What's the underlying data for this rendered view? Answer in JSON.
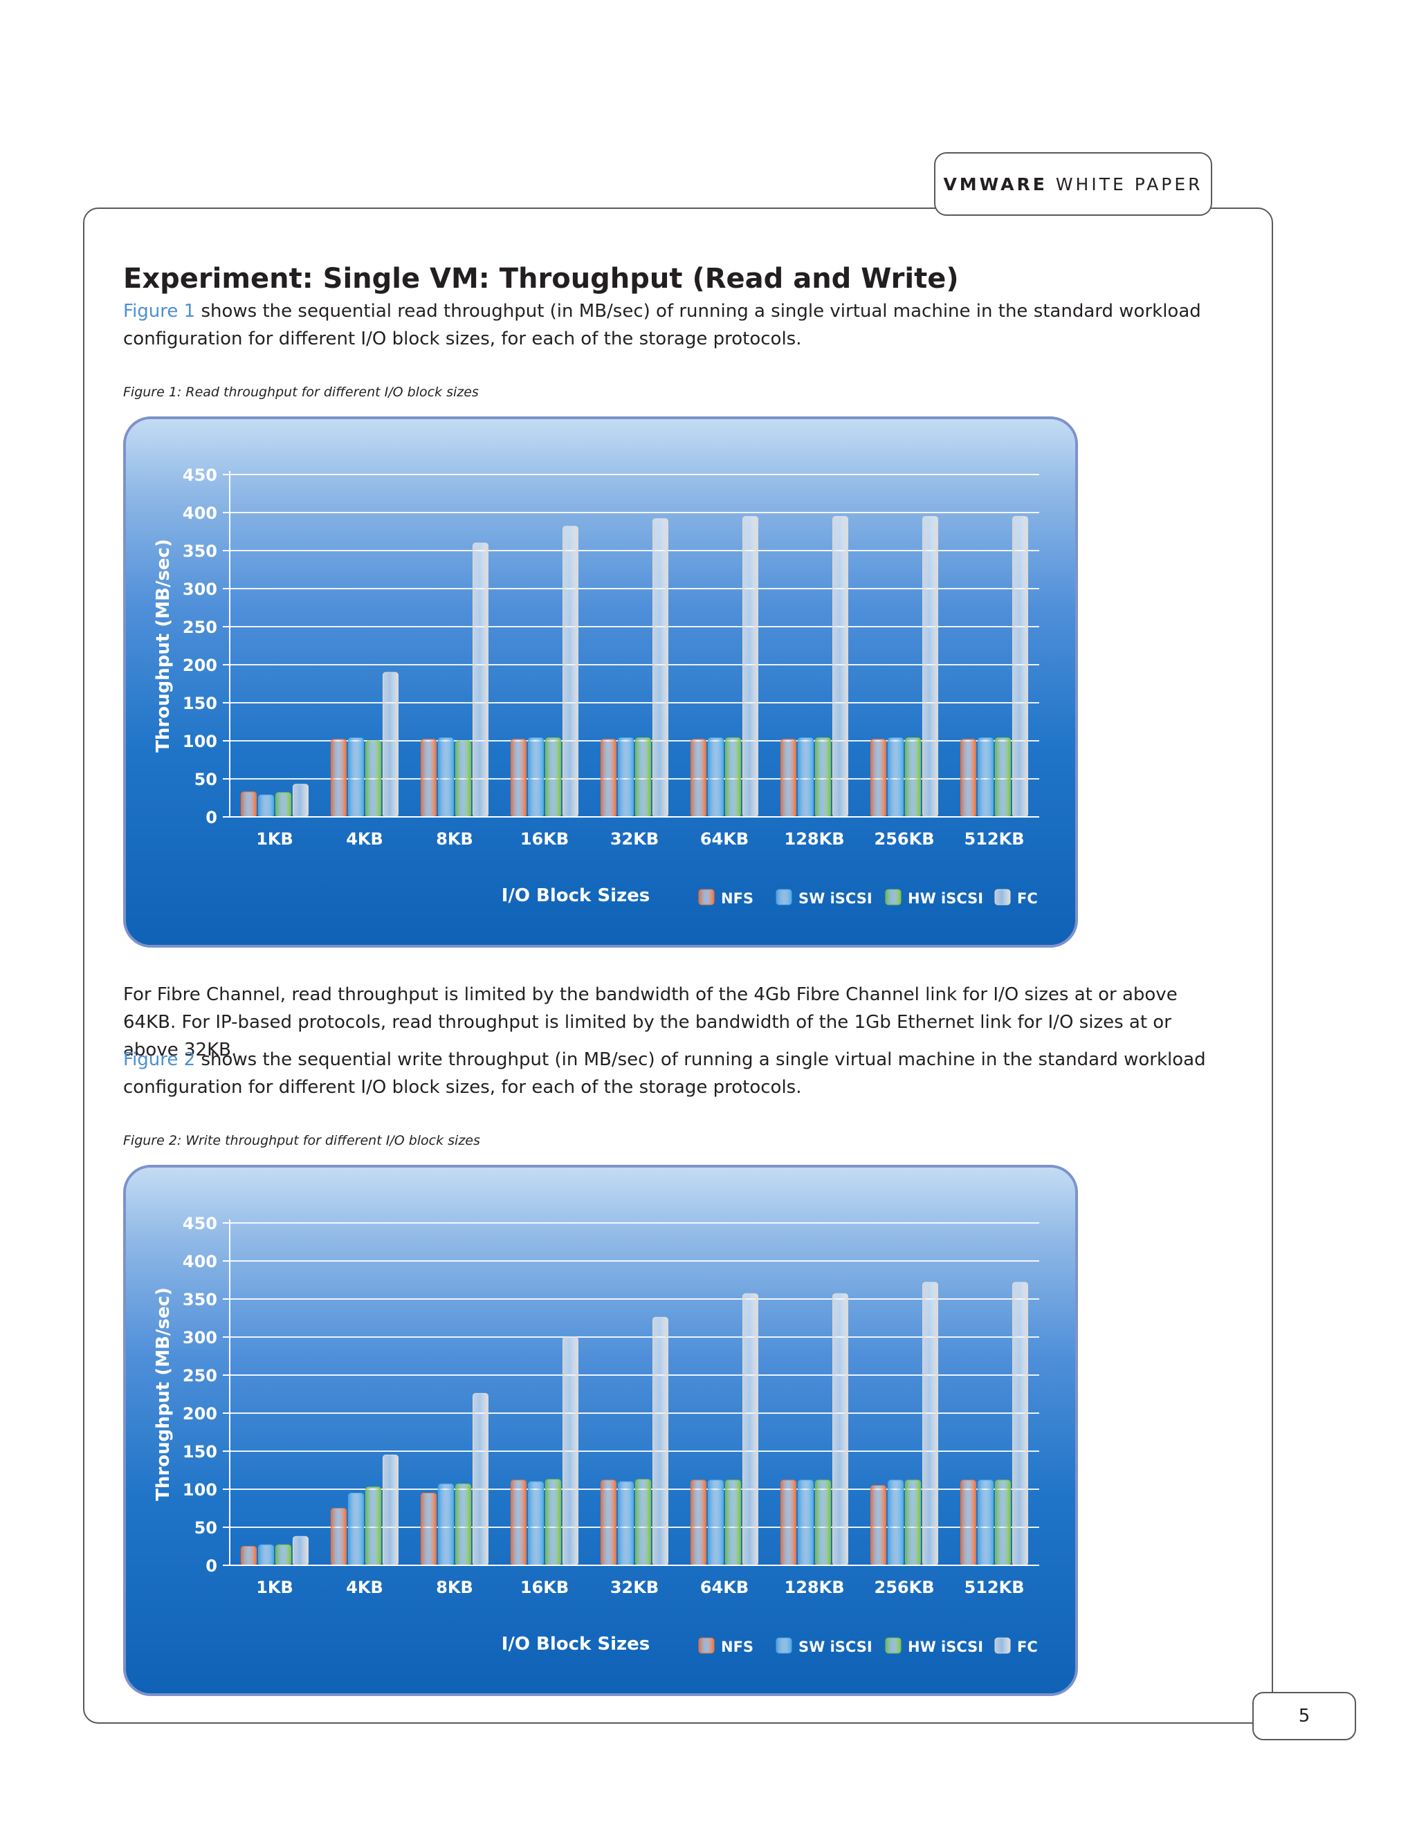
{
  "header": {
    "brand": "VMWARE",
    "doc_type": "WHITE PAPER"
  },
  "section_title": "Experiment: Single VM: Throughput (Read and Write)",
  "paragraphs": {
    "p1_link": "Figure 1",
    "p1_text": " shows the sequential read throughput (in MB/sec) of running a single virtual machine in the standard workload configuration for different I/O block sizes, for each of the storage protocols.",
    "p2_text": "For Fibre Channel, read throughput is limited by the bandwidth of the 4Gb Fibre Channel link for I/O sizes at or above 64KB. For IP-based protocols, read throughput is limited by the bandwidth of the 1Gb Ethernet link for I/O sizes at or above 32KB.",
    "p3_link": "Figure 2",
    "p3_text": " shows the sequential write throughput (in MB/sec) of running a single virtual machine in the standard workload configuration for different I/O block sizes, for each of the storage protocols."
  },
  "captions": {
    "figure1": "Figure 1: Read throughput for different I/O block sizes",
    "figure2": "Figure 2: Write throughput for different I/O block sizes"
  },
  "page_number": "5",
  "series_colors": {
    "NFS": "#f0713a",
    "SW iSCSI": "#4aa8e8",
    "HW iSCSI": "#7cc243",
    "FC": "#dcdcdc"
  },
  "chart_data": [
    {
      "type": "bar",
      "ylabel": "Throughput (MB/sec)",
      "xlabel": "I/O Block Sizes",
      "ylim": [
        0,
        450
      ],
      "yticks": [
        0,
        50,
        100,
        150,
        200,
        250,
        300,
        350,
        400,
        450
      ],
      "grid": true,
      "legend_position": "bottom-right",
      "categories": [
        "1KB",
        "4KB",
        "8KB",
        "16KB",
        "32KB",
        "64KB",
        "128KB",
        "256KB",
        "512KB"
      ],
      "series": [
        {
          "name": "NFS",
          "values": [
            33,
            102,
            102,
            102,
            102,
            102,
            102,
            102,
            102
          ]
        },
        {
          "name": "SW iSCSI",
          "values": [
            29,
            104,
            104,
            104,
            104,
            104,
            104,
            104,
            104
          ]
        },
        {
          "name": "HW iSCSI",
          "values": [
            32,
            100,
            100,
            104,
            104,
            104,
            104,
            104,
            104
          ]
        },
        {
          "name": "FC",
          "values": [
            43,
            190,
            360,
            382,
            392,
            395,
            395,
            395,
            395
          ]
        }
      ]
    },
    {
      "type": "bar",
      "ylabel": "Throughput (MB/sec)",
      "xlabel": "I/O Block Sizes",
      "ylim": [
        0,
        450
      ],
      "yticks": [
        0,
        50,
        100,
        150,
        200,
        250,
        300,
        350,
        400,
        450
      ],
      "grid": true,
      "legend_position": "bottom-right",
      "categories": [
        "1KB",
        "4KB",
        "8KB",
        "16KB",
        "32KB",
        "64KB",
        "128KB",
        "256KB",
        "512KB"
      ],
      "series": [
        {
          "name": "NFS",
          "values": [
            25,
            75,
            95,
            112,
            112,
            112,
            112,
            105,
            112
          ]
        },
        {
          "name": "SW iSCSI",
          "values": [
            27,
            95,
            107,
            110,
            110,
            112,
            112,
            112,
            112
          ]
        },
        {
          "name": "HW iSCSI",
          "values": [
            27,
            103,
            107,
            113,
            113,
            112,
            112,
            112,
            112
          ]
        },
        {
          "name": "FC",
          "values": [
            38,
            145,
            226,
            300,
            326,
            357,
            357,
            372,
            372
          ]
        }
      ]
    }
  ]
}
